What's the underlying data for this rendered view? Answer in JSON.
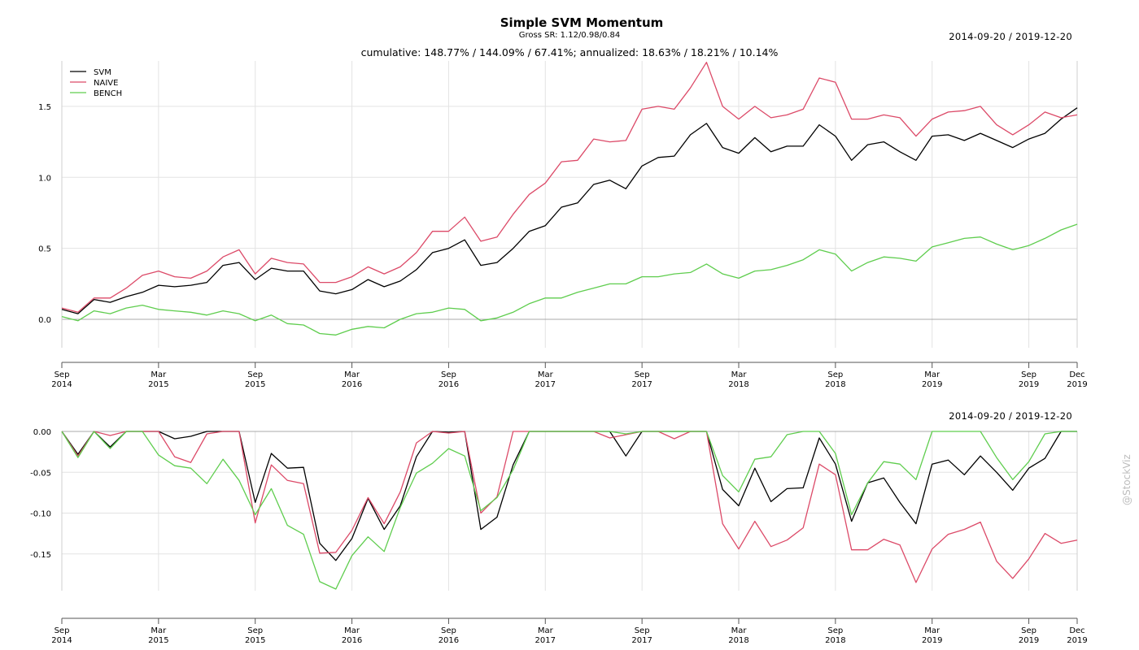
{
  "title": "Simple SVM Momentum",
  "subtitle": "Gross SR: 1.12/0.98/0.84",
  "stats_line": "cumulative: 148.77% / 144.09% / 67.41%; annualized: 18.63% / 18.21% / 10.14%",
  "date_range": "2014-09-20 / 2019-12-20",
  "watermark": "@StockViz",
  "chart_data": [
    {
      "type": "line",
      "name": "cumulative returns",
      "x_axis": {
        "ticks": [
          {
            "month": 0,
            "label1": "Sep",
            "label2": "2014"
          },
          {
            "month": 6,
            "label1": "Mar",
            "label2": "2015"
          },
          {
            "month": 12,
            "label1": "Sep",
            "label2": "2015"
          },
          {
            "month": 18,
            "label1": "Mar",
            "label2": "2016"
          },
          {
            "month": 24,
            "label1": "Sep",
            "label2": "2016"
          },
          {
            "month": 30,
            "label1": "Mar",
            "label2": "2017"
          },
          {
            "month": 36,
            "label1": "Sep",
            "label2": "2017"
          },
          {
            "month": 42,
            "label1": "Mar",
            "label2": "2018"
          },
          {
            "month": 48,
            "label1": "Sep",
            "label2": "2018"
          },
          {
            "month": 54,
            "label1": "Mar",
            "label2": "2019"
          },
          {
            "month": 60,
            "label1": "Sep",
            "label2": "2019"
          },
          {
            "month": 63,
            "label1": "Dec",
            "label2": "2019"
          }
        ],
        "range": [
          0,
          63
        ]
      },
      "y_axis": {
        "ticks": [
          0.0,
          0.5,
          1.0,
          1.5
        ],
        "tick_labels": [
          "0.0",
          "0.5",
          "1.0",
          "1.5"
        ],
        "ylim": [
          -0.2,
          1.82
        ]
      },
      "grid": true,
      "legend_position": "top-left",
      "series": [
        {
          "name": "SVM",
          "color": "#000000",
          "values": [
            0.07,
            0.04,
            0.14,
            0.12,
            0.16,
            0.19,
            0.24,
            0.23,
            0.24,
            0.26,
            0.38,
            0.4,
            0.28,
            0.36,
            0.34,
            0.34,
            0.2,
            0.18,
            0.21,
            0.28,
            0.23,
            0.27,
            0.35,
            0.47,
            0.5,
            0.56,
            0.38,
            0.4,
            0.5,
            0.62,
            0.66,
            0.79,
            0.82,
            0.95,
            0.98,
            0.92,
            1.08,
            1.14,
            1.15,
            1.3,
            1.38,
            1.21,
            1.17,
            1.28,
            1.18,
            1.22,
            1.22,
            1.37,
            1.29,
            1.12,
            1.23,
            1.25,
            1.18,
            1.12,
            1.29,
            1.3,
            1.26,
            1.31,
            1.26,
            1.21,
            1.27,
            1.31,
            1.41,
            1.49
          ]
        },
        {
          "name": "NAIVE",
          "color": "#dc4a68",
          "values": [
            0.08,
            0.05,
            0.15,
            0.15,
            0.22,
            0.31,
            0.34,
            0.3,
            0.29,
            0.34,
            0.44,
            0.49,
            0.32,
            0.43,
            0.4,
            0.39,
            0.26,
            0.26,
            0.3,
            0.37,
            0.32,
            0.37,
            0.47,
            0.62,
            0.62,
            0.72,
            0.55,
            0.58,
            0.74,
            0.88,
            0.96,
            1.11,
            1.12,
            1.27,
            1.25,
            1.26,
            1.48,
            1.5,
            1.48,
            1.63,
            1.81,
            1.5,
            1.41,
            1.5,
            1.42,
            1.44,
            1.48,
            1.7,
            1.67,
            1.41,
            1.41,
            1.44,
            1.42,
            1.29,
            1.41,
            1.46,
            1.47,
            1.5,
            1.37,
            1.3,
            1.37,
            1.46,
            1.42,
            1.44
          ]
        },
        {
          "name": "BENCH",
          "color": "#5fcd4e",
          "values": [
            0.02,
            -0.01,
            0.06,
            0.04,
            0.08,
            0.1,
            0.07,
            0.06,
            0.05,
            0.03,
            0.06,
            0.04,
            -0.01,
            0.03,
            -0.03,
            -0.04,
            -0.1,
            -0.11,
            -0.07,
            -0.05,
            -0.06,
            0.0,
            0.04,
            0.05,
            0.08,
            0.07,
            -0.01,
            0.01,
            0.05,
            0.11,
            0.15,
            0.15,
            0.19,
            0.22,
            0.25,
            0.25,
            0.3,
            0.3,
            0.32,
            0.33,
            0.39,
            0.32,
            0.29,
            0.34,
            0.35,
            0.38,
            0.42,
            0.49,
            0.46,
            0.34,
            0.4,
            0.44,
            0.43,
            0.41,
            0.51,
            0.54,
            0.57,
            0.58,
            0.53,
            0.49,
            0.52,
            0.57,
            0.63,
            0.67
          ]
        }
      ]
    },
    {
      "type": "line",
      "name": "drawdowns",
      "x_axis": {
        "ticks": [
          {
            "month": 0,
            "label1": "Sep",
            "label2": "2014"
          },
          {
            "month": 6,
            "label1": "Mar",
            "label2": "2015"
          },
          {
            "month": 12,
            "label1": "Sep",
            "label2": "2015"
          },
          {
            "month": 18,
            "label1": "Mar",
            "label2": "2016"
          },
          {
            "month": 24,
            "label1": "Sep",
            "label2": "2016"
          },
          {
            "month": 30,
            "label1": "Mar",
            "label2": "2017"
          },
          {
            "month": 36,
            "label1": "Sep",
            "label2": "2017"
          },
          {
            "month": 42,
            "label1": "Mar",
            "label2": "2018"
          },
          {
            "month": 48,
            "label1": "Sep",
            "label2": "2018"
          },
          {
            "month": 54,
            "label1": "Mar",
            "label2": "2019"
          },
          {
            "month": 60,
            "label1": "Sep",
            "label2": "2019"
          },
          {
            "month": 63,
            "label1": "Dec",
            "label2": "2019"
          }
        ],
        "range": [
          0,
          63
        ]
      },
      "y_axis": {
        "ticks": [
          0.0,
          -0.05,
          -0.1,
          -0.15
        ],
        "tick_labels": [
          "0.00",
          "-0.05",
          "-0.10",
          "-0.15"
        ],
        "ylim": [
          -0.195,
          0.0
        ]
      },
      "grid": true,
      "series": [
        {
          "name": "SVM",
          "color": "#000000",
          "values": [
            0.0,
            -0.028,
            0.0,
            -0.019,
            0.0,
            0.0,
            0.0,
            -0.009,
            -0.006,
            0.0,
            0.0,
            0.0,
            -0.087,
            -0.027,
            -0.045,
            -0.044,
            -0.137,
            -0.158,
            -0.131,
            -0.082,
            -0.12,
            -0.091,
            -0.031,
            0.0,
            -0.001,
            0.0,
            -0.12,
            -0.105,
            -0.041,
            0.0,
            0.0,
            0.0,
            0.0,
            0.0,
            0.0,
            -0.03,
            0.0,
            0.0,
            0.0,
            0.0,
            0.0,
            -0.071,
            -0.091,
            -0.045,
            -0.086,
            -0.07,
            -0.069,
            -0.008,
            -0.04,
            -0.11,
            -0.063,
            -0.057,
            -0.087,
            -0.113,
            -0.04,
            -0.035,
            -0.053,
            -0.03,
            -0.05,
            -0.072,
            -0.045,
            -0.033,
            0.0,
            0.0
          ]
        },
        {
          "name": "NAIVE",
          "color": "#dc4a68",
          "values": [
            0.0,
            -0.03,
            0.0,
            -0.005,
            0.0,
            0.0,
            0.0,
            -0.031,
            -0.038,
            -0.003,
            0.0,
            0.0,
            -0.112,
            -0.041,
            -0.06,
            -0.064,
            -0.149,
            -0.148,
            -0.121,
            -0.081,
            -0.113,
            -0.074,
            -0.014,
            0.0,
            -0.002,
            0.0,
            -0.1,
            -0.08,
            0.0,
            0.0,
            0.0,
            0.0,
            0.0,
            0.0,
            -0.008,
            -0.004,
            0.0,
            0.0,
            -0.009,
            0.0,
            0.0,
            -0.113,
            -0.144,
            -0.11,
            -0.141,
            -0.133,
            -0.118,
            -0.04,
            -0.053,
            -0.145,
            -0.145,
            -0.132,
            -0.139,
            -0.185,
            -0.144,
            -0.126,
            -0.12,
            -0.111,
            -0.159,
            -0.18,
            -0.156,
            -0.125,
            -0.137,
            -0.133
          ]
        },
        {
          "name": "BENCH",
          "color": "#5fcd4e",
          "values": [
            0.0,
            -0.032,
            0.0,
            -0.021,
            0.0,
            0.0,
            -0.029,
            -0.042,
            -0.045,
            -0.064,
            -0.034,
            -0.06,
            -0.102,
            -0.07,
            -0.115,
            -0.126,
            -0.184,
            -0.193,
            -0.152,
            -0.129,
            -0.147,
            -0.093,
            -0.051,
            -0.039,
            -0.021,
            -0.03,
            -0.097,
            -0.081,
            -0.047,
            0.0,
            0.0,
            0.0,
            0.0,
            0.0,
            0.0,
            -0.003,
            0.0,
            0.0,
            0.0,
            0.0,
            0.0,
            -0.054,
            -0.074,
            -0.034,
            -0.031,
            -0.004,
            0.0,
            0.0,
            -0.027,
            -0.102,
            -0.063,
            -0.037,
            -0.04,
            -0.059,
            0.0,
            0.0,
            0.0,
            0.0,
            -0.032,
            -0.059,
            -0.037,
            -0.003,
            0.0,
            0.0
          ]
        }
      ]
    }
  ]
}
